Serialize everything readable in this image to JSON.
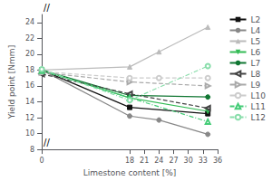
{
  "chart_data": {
    "type": "line",
    "x": [
      0,
      18,
      24,
      34
    ],
    "series": [
      {
        "name": "L2",
        "values": [
          18.0,
          13.3,
          null,
          12.5
        ],
        "color": "#111111",
        "line_style": "solid",
        "marker": "square"
      },
      {
        "name": "L4",
        "values": [
          18.0,
          12.2,
          11.7,
          9.9
        ],
        "color": "#888888",
        "line_style": "solid",
        "marker": "circle"
      },
      {
        "name": "L5",
        "values": [
          18.0,
          18.4,
          20.3,
          23.4
        ],
        "color": "#bbbbbb",
        "line_style": "solid",
        "marker": "triangle-up"
      },
      {
        "name": "L6",
        "values": [
          18.0,
          14.5,
          null,
          12.8
        ],
        "color": "#33bb55",
        "line_style": "solid",
        "marker": "triangle-down"
      },
      {
        "name": "L7",
        "values": [
          18.0,
          14.8,
          null,
          14.6
        ],
        "color": "#117733",
        "line_style": "solid",
        "marker": "circle"
      },
      {
        "name": "L8",
        "values": [
          17.5,
          15.0,
          null,
          13.2
        ],
        "color": "#444444",
        "line_style": "dashed",
        "marker": "open-triangle-left"
      },
      {
        "name": "L9",
        "values": [
          17.7,
          16.5,
          null,
          16.0
        ],
        "color": "#aaaaaa",
        "line_style": "dashed",
        "marker": "open-triangle-right"
      },
      {
        "name": "L10",
        "values": [
          17.8,
          17.0,
          17.0,
          17.0
        ],
        "color": "#cccccc",
        "line_style": "dashed",
        "marker": "open-circle"
      },
      {
        "name": "L11",
        "values": [
          17.9,
          14.5,
          null,
          11.5
        ],
        "color": "#44cc77",
        "line_style": "dashdot",
        "marker": "open-triangle-up"
      },
      {
        "name": "L12",
        "values": [
          18.1,
          14.2,
          null,
          18.5
        ],
        "color": "#88ddaa",
        "line_style": "dashdot",
        "marker": "open-circle"
      }
    ],
    "xlabel": "Limestone content [%]",
    "ylabel": "Yield point [Nmm]",
    "xlim": [
      0,
      36
    ],
    "ylim": [
      8,
      25
    ],
    "xticks": [
      0,
      18,
      21,
      24,
      27,
      30,
      33,
      36
    ],
    "yticks": [
      8,
      10,
      12,
      14,
      16,
      18,
      20,
      22,
      24
    ],
    "grid": false,
    "legend": "upper right",
    "annotations": [
      "//",
      "//"
    ]
  }
}
